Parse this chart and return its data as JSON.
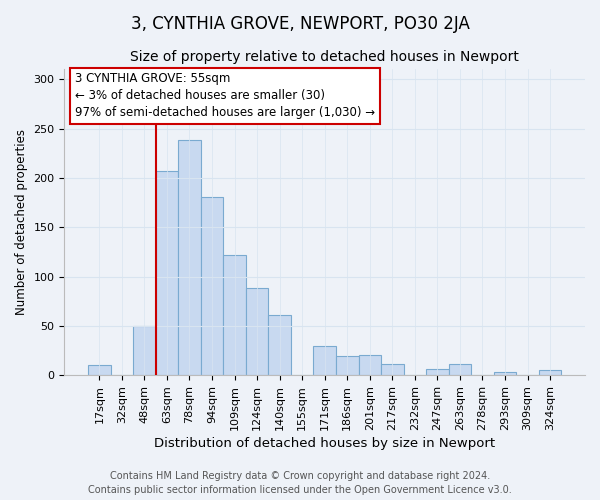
{
  "title": "3, CYNTHIA GROVE, NEWPORT, PO30 2JA",
  "subtitle": "Size of property relative to detached houses in Newport",
  "xlabel": "Distribution of detached houses by size in Newport",
  "ylabel": "Number of detached properties",
  "bar_labels": [
    "17sqm",
    "32sqm",
    "48sqm",
    "63sqm",
    "78sqm",
    "94sqm",
    "109sqm",
    "124sqm",
    "140sqm",
    "155sqm",
    "171sqm",
    "186sqm",
    "201sqm",
    "217sqm",
    "232sqm",
    "247sqm",
    "263sqm",
    "278sqm",
    "293sqm",
    "309sqm",
    "324sqm"
  ],
  "bar_values": [
    10,
    0,
    50,
    207,
    238,
    181,
    122,
    88,
    61,
    0,
    30,
    19,
    20,
    11,
    0,
    6,
    11,
    0,
    3,
    0,
    5
  ],
  "bar_color": "#c8d9f0",
  "bar_edge_color": "#7aaad0",
  "vline_color": "#cc0000",
  "annotation_text": "3 CYNTHIA GROVE: 55sqm\n← 3% of detached houses are smaller (30)\n97% of semi-detached houses are larger (1,030) →",
  "annotation_box_color": "#ffffff",
  "annotation_box_edge": "#cc0000",
  "ylim": [
    0,
    310
  ],
  "yticks": [
    0,
    50,
    100,
    150,
    200,
    250,
    300
  ],
  "grid_color": "#d8e4f0",
  "background_color": "#eef2f8",
  "footer": "Contains HM Land Registry data © Crown copyright and database right 2024.\nContains public sector information licensed under the Open Government Licence v3.0.",
  "title_fontsize": 12,
  "subtitle_fontsize": 10,
  "xlabel_fontsize": 9.5,
  "ylabel_fontsize": 8.5,
  "footer_fontsize": 7,
  "tick_fontsize": 8,
  "annotation_fontsize": 8.5
}
